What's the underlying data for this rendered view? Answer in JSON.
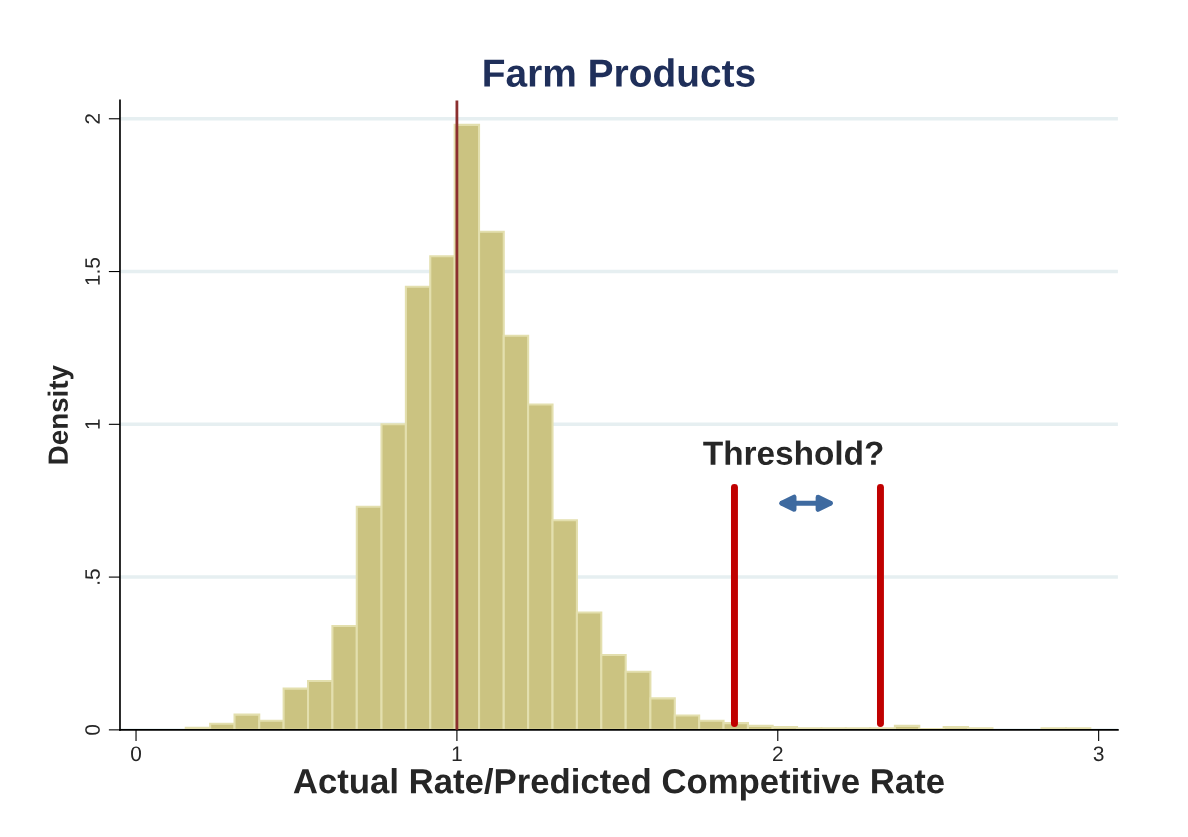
{
  "chart_data": {
    "type": "histogram",
    "title": "Farm Products",
    "xlabel": "Actual Rate/Predicted Competitive Rate",
    "ylabel": "Density",
    "bins": [
      0.155,
      0.231,
      0.307,
      0.384,
      0.46,
      0.536,
      0.612,
      0.688,
      0.765,
      0.841,
      0.917,
      0.993,
      1.069,
      1.146,
      1.222,
      1.298,
      1.374,
      1.45,
      1.526,
      1.603,
      1.679,
      1.755,
      1.831,
      1.907,
      1.984,
      2.06,
      2.136,
      2.212,
      2.288,
      2.365,
      2.441,
      2.517,
      2.593,
      2.669,
      2.746,
      2.822,
      2.898,
      2.974
    ],
    "values": [
      0.007,
      0.02,
      0.05,
      0.03,
      0.135,
      0.16,
      0.34,
      0.73,
      1.0,
      1.45,
      1.55,
      1.98,
      1.63,
      1.29,
      1.065,
      0.686,
      0.384,
      0.245,
      0.19,
      0.103,
      0.047,
      0.03,
      0.022,
      0.013,
      0.009,
      0.005,
      0.005,
      0.005,
      0.005,
      0.013,
      0.003,
      0.009,
      0.005,
      0,
      0,
      0.005,
      0.005
    ],
    "color": "#cbc381",
    "xlim": [
      -0.05,
      3.06
    ],
    "ylim": [
      0,
      2.06
    ],
    "xticks": [
      0,
      1,
      2,
      3
    ],
    "yticks": [
      0,
      {
        "value": 0.5,
        "label": ".5"
      },
      1,
      1.5,
      2
    ],
    "grid": "y",
    "ref_lines": [
      {
        "axis": "x",
        "value": 1,
        "color": "#8b2f2f"
      },
      {
        "axis": "x",
        "value": 1.865,
        "color": "#c00000"
      },
      {
        "axis": "x",
        "value": 2.32,
        "color": "#c00000"
      }
    ],
    "annotations": [
      "Threshold?"
    ]
  }
}
